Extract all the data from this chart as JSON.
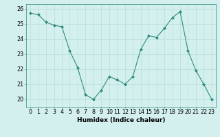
{
  "x": [
    0,
    1,
    2,
    3,
    4,
    5,
    6,
    7,
    8,
    9,
    10,
    11,
    12,
    13,
    14,
    15,
    16,
    17,
    18,
    19,
    20,
    21,
    22,
    23
  ],
  "y": [
    25.7,
    25.6,
    25.1,
    24.9,
    24.8,
    23.2,
    22.1,
    20.3,
    20.0,
    20.6,
    21.5,
    21.3,
    21.0,
    21.5,
    23.3,
    24.2,
    24.1,
    24.7,
    25.4,
    25.8,
    23.2,
    21.9,
    21.0,
    20.0
  ],
  "xlabel": "Humidex (Indice chaleur)",
  "ylabel": "",
  "ylim": [
    19.5,
    26.3
  ],
  "xlim": [
    -0.5,
    23.5
  ],
  "yticks": [
    20,
    21,
    22,
    23,
    24,
    25,
    26
  ],
  "xtick_labels": [
    "0",
    "1",
    "2",
    "3",
    "4",
    "5",
    "6",
    "7",
    "8",
    "9",
    "10",
    "11",
    "12",
    "13",
    "14",
    "15",
    "16",
    "17",
    "18",
    "19",
    "20",
    "21",
    "22",
    "23"
  ],
  "line_color": "#2e8b7a",
  "marker": "D",
  "marker_size": 2.0,
  "bg_color": "#d4f0ee",
  "grid_color": "#b8ddd9",
  "axis_fontsize": 6.5,
  "tick_fontsize": 5.8
}
